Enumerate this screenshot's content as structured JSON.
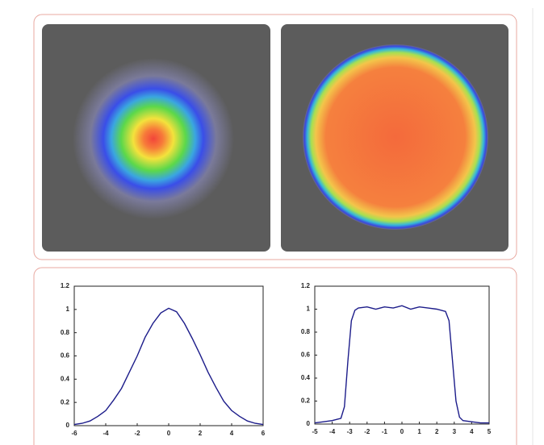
{
  "chart_data": [
    {
      "type": "line",
      "x": [
        -6,
        -5.5,
        -5,
        -4.5,
        -4,
        -3.5,
        -3,
        -2.5,
        -2,
        -1.5,
        -1,
        -0.5,
        0,
        0.5,
        1,
        1.5,
        2,
        2.5,
        3,
        3.5,
        4,
        4.5,
        5,
        5.5,
        6
      ],
      "series": [
        {
          "color": "#1c1c8a",
          "values": [
            0.01,
            0.02,
            0.04,
            0.08,
            0.13,
            0.22,
            0.32,
            0.46,
            0.6,
            0.76,
            0.88,
            0.97,
            1.01,
            0.98,
            0.88,
            0.75,
            0.61,
            0.46,
            0.33,
            0.21,
            0.13,
            0.08,
            0.04,
            0.02,
            0.01
          ]
        }
      ],
      "xlim": [
        -6,
        6
      ],
      "xticks": [
        -6,
        -4,
        -2,
        0,
        2,
        4,
        6
      ],
      "ylim": [
        0,
        1.2
      ],
      "yticks": [
        0,
        0.2,
        0.4,
        0.6,
        0.8,
        1,
        1.2
      ]
    },
    {
      "type": "line",
      "x": [
        -5,
        -4.5,
        -4,
        -3.5,
        -3.3,
        -3.1,
        -2.9,
        -2.7,
        -2.5,
        -2,
        -1.5,
        -1,
        -0.5,
        0,
        0.5,
        1,
        1.5,
        2,
        2.5,
        2.7,
        2.9,
        3.1,
        3.3,
        3.5,
        4,
        4.5,
        5
      ],
      "series": [
        {
          "color": "#1c1c8a",
          "values": [
            0.01,
            0.02,
            0.03,
            0.05,
            0.15,
            0.55,
            0.9,
            0.99,
            1.01,
            1.02,
            1.0,
            1.02,
            1.01,
            1.03,
            1.0,
            1.02,
            1.01,
            1.0,
            0.98,
            0.9,
            0.55,
            0.2,
            0.06,
            0.03,
            0.02,
            0.01,
            0.01
          ]
        }
      ],
      "xlim": [
        -5,
        5
      ],
      "xticks": [
        -5,
        -4,
        -3,
        -2,
        -1,
        0,
        1,
        2,
        3,
        4,
        5
      ],
      "ylim": [
        0,
        1.2
      ],
      "yticks": [
        0,
        0.2,
        0.4,
        0.6,
        0.8,
        1,
        1.2
      ]
    }
  ]
}
